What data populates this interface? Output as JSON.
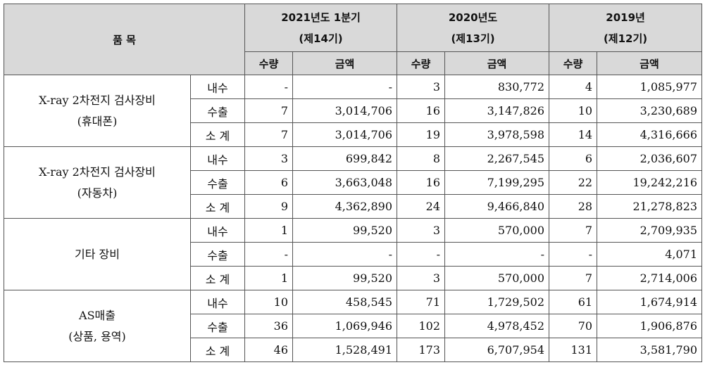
{
  "header": {
    "item": "품 목",
    "periods": [
      {
        "title": "2021년도 1분기",
        "sub": "(제14기)"
      },
      {
        "title": "2020년도",
        "sub": "(제13기)"
      },
      {
        "title": "2019년",
        "sub": "(제12기)"
      }
    ],
    "qty": "수량",
    "amount": "금액"
  },
  "groups": [
    {
      "name": [
        "X-ray 2차전지 검사장비",
        "(휴대폰)"
      ],
      "rows": [
        {
          "type": "내수",
          "cells": [
            "-",
            "-",
            "3",
            "830,772",
            "4",
            "1,085,977"
          ]
        },
        {
          "type": "수출",
          "cells": [
            "7",
            "3,014,706",
            "16",
            "3,147,826",
            "10",
            "3,230,689"
          ]
        },
        {
          "type": "소 계",
          "cells": [
            "7",
            "3,014,706",
            "19",
            "3,978,598",
            "14",
            "4,316,666"
          ]
        }
      ]
    },
    {
      "name": [
        "X-ray 2차전지 검사장비",
        "(자동차)"
      ],
      "rows": [
        {
          "type": "내수",
          "cells": [
            "3",
            "699,842",
            "8",
            "2,267,545",
            "6",
            "2,036,607"
          ]
        },
        {
          "type": "수출",
          "cells": [
            "6",
            "3,663,048",
            "16",
            "7,199,295",
            "22",
            "19,242,216"
          ]
        },
        {
          "type": "소 계",
          "cells": [
            "9",
            "4,362,890",
            "24",
            "9,466,840",
            "28",
            "21,278,823"
          ]
        }
      ]
    },
    {
      "name": [
        "기타 장비"
      ],
      "rows": [
        {
          "type": "내수",
          "cells": [
            "1",
            "99,520",
            "3",
            "570,000",
            "7",
            "2,709,935"
          ]
        },
        {
          "type": "수출",
          "cells": [
            "-",
            "-",
            "-",
            "-",
            "-",
            "4,071"
          ]
        },
        {
          "type": "소 계",
          "cells": [
            "1",
            "99,520",
            "3",
            "570,000",
            "7",
            "2,714,006"
          ]
        }
      ]
    },
    {
      "name": [
        "AS매출",
        "(상품, 용역)"
      ],
      "rows": [
        {
          "type": "내수",
          "cells": [
            "10",
            "458,545",
            "71",
            "1,729,502",
            "61",
            "1,674,914"
          ]
        },
        {
          "type": "수출",
          "cells": [
            "36",
            "1,069,946",
            "102",
            "4,978,452",
            "70",
            "1,906,876"
          ]
        },
        {
          "type": "소 계",
          "cells": [
            "46",
            "1,528,491",
            "173",
            "6,707,954",
            "131",
            "3,581,790"
          ]
        }
      ]
    }
  ]
}
